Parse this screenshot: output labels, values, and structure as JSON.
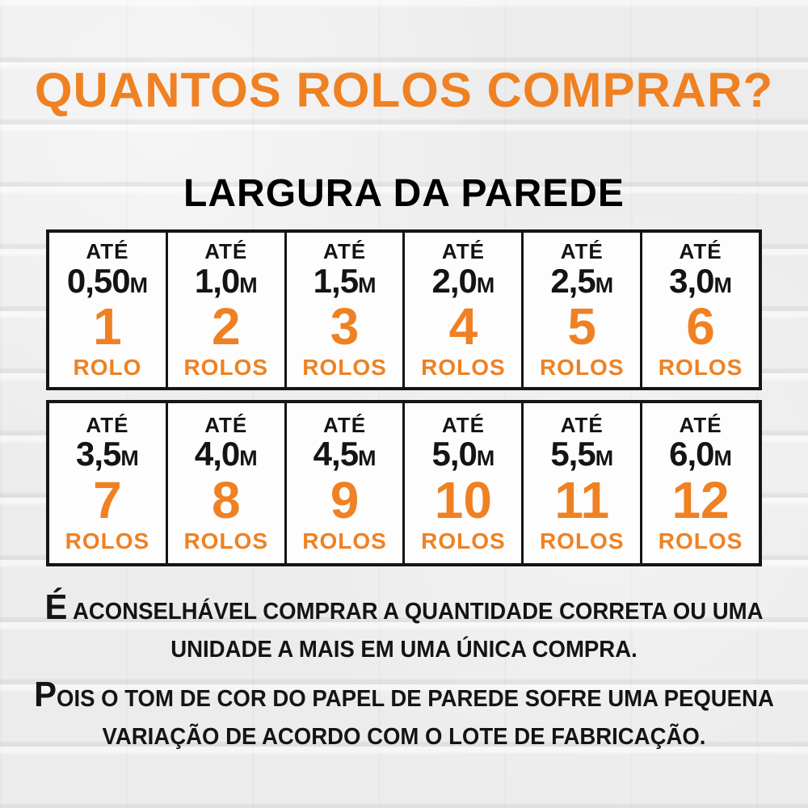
{
  "colors": {
    "accent_orange": "#EF8123",
    "text_black": "#141414",
    "cell_background": "#FDFDFD",
    "page_background": "#ECECEC",
    "table_border": "#151515"
  },
  "header": {
    "title": "QUANTOS ROLOS COMPRAR?",
    "subtitle": "LARGURA DA PAREDE"
  },
  "table": {
    "rows": [
      {
        "cells": [
          {
            "ate": "ATÉ",
            "width": "0,50",
            "unit": "m",
            "count": "1",
            "label": "ROLO"
          },
          {
            "ate": "ATÉ",
            "width": "1,0",
            "unit": "m",
            "count": "2",
            "label": "ROLOS"
          },
          {
            "ate": "ATÉ",
            "width": "1,5",
            "unit": "m",
            "count": "3",
            "label": "ROLOS"
          },
          {
            "ate": "ATÉ",
            "width": "2,0",
            "unit": "m",
            "count": "4",
            "label": "ROLOS"
          },
          {
            "ate": "ATÉ",
            "width": "2,5",
            "unit": "m",
            "count": "5",
            "label": "ROLOS"
          },
          {
            "ate": "ATÉ",
            "width": "3,0",
            "unit": "m",
            "count": "6",
            "label": "ROLOS"
          }
        ]
      },
      {
        "cells": [
          {
            "ate": "ATÉ",
            "width": "3,5",
            "unit": "m",
            "count": "7",
            "label": "ROLOS"
          },
          {
            "ate": "ATÉ",
            "width": "4,0",
            "unit": "m",
            "count": "8",
            "label": "ROLOS"
          },
          {
            "ate": "ATÉ",
            "width": "4,5",
            "unit": "m",
            "count": "9",
            "label": "ROLOS"
          },
          {
            "ate": "ATÉ",
            "width": "5,0",
            "unit": "m",
            "count": "10",
            "label": "ROLOS"
          },
          {
            "ate": "ATÉ",
            "width": "5,5",
            "unit": "m",
            "count": "11",
            "label": "ROLOS"
          },
          {
            "ate": "ATÉ",
            "width": "6,0",
            "unit": "m",
            "count": "12",
            "label": "ROLOS"
          }
        ]
      }
    ]
  },
  "notes": [
    {
      "lead": "É",
      "line1": " ACONSELHÁVEL COMPRAR A QUANTIDADE CORRETA OU UMA",
      "line2": "UNIDADE A MAIS EM UMA ÚNICA COMPRA."
    },
    {
      "lead": "P",
      "line1": "OIS O TOM DE COR DO PAPEL DE PAREDE SOFRE UMA PEQUENA",
      "line2": "VARIAÇÃO DE ACORDO COM O LOTE DE FABRICAÇÃO."
    }
  ]
}
